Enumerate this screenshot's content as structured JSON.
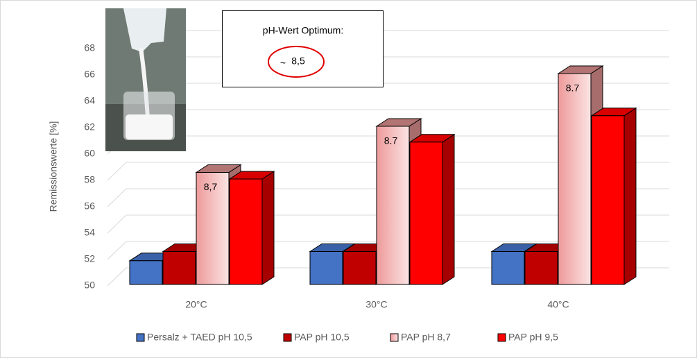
{
  "chart_data": {
    "type": "bar3d",
    "y_label": "Remissionswerte [%]",
    "categories": [
      "20°C",
      "30°C",
      "40°C"
    ],
    "series": [
      {
        "name": "Persalz + TAED pH 10,5",
        "color": "#4472c4",
        "values": [
          51.8,
          52.5,
          52.5
        ]
      },
      {
        "name": "PAP pH 10,5",
        "color": "#c00000",
        "values": [
          52.5,
          52.5,
          52.5
        ]
      },
      {
        "name": "PAP pH 8,7",
        "color": "#ee9a9a",
        "values": [
          58.5,
          62,
          66
        ]
      },
      {
        "name": "PAP pH 9,5",
        "color": "#ff0000",
        "values": [
          58,
          60.8,
          62.8
        ]
      }
    ],
    "bar_annotations": [
      "8,7",
      "8.7",
      "8.7"
    ],
    "ylim": [
      50,
      68
    ],
    "yticks": [
      50,
      52,
      54,
      56,
      58,
      60,
      62,
      64,
      66,
      68
    ],
    "grid": true,
    "legend": "bottom",
    "callout": {
      "title": "pH-Wert Optimum:",
      "approx": "~",
      "value": "8,5"
    }
  }
}
